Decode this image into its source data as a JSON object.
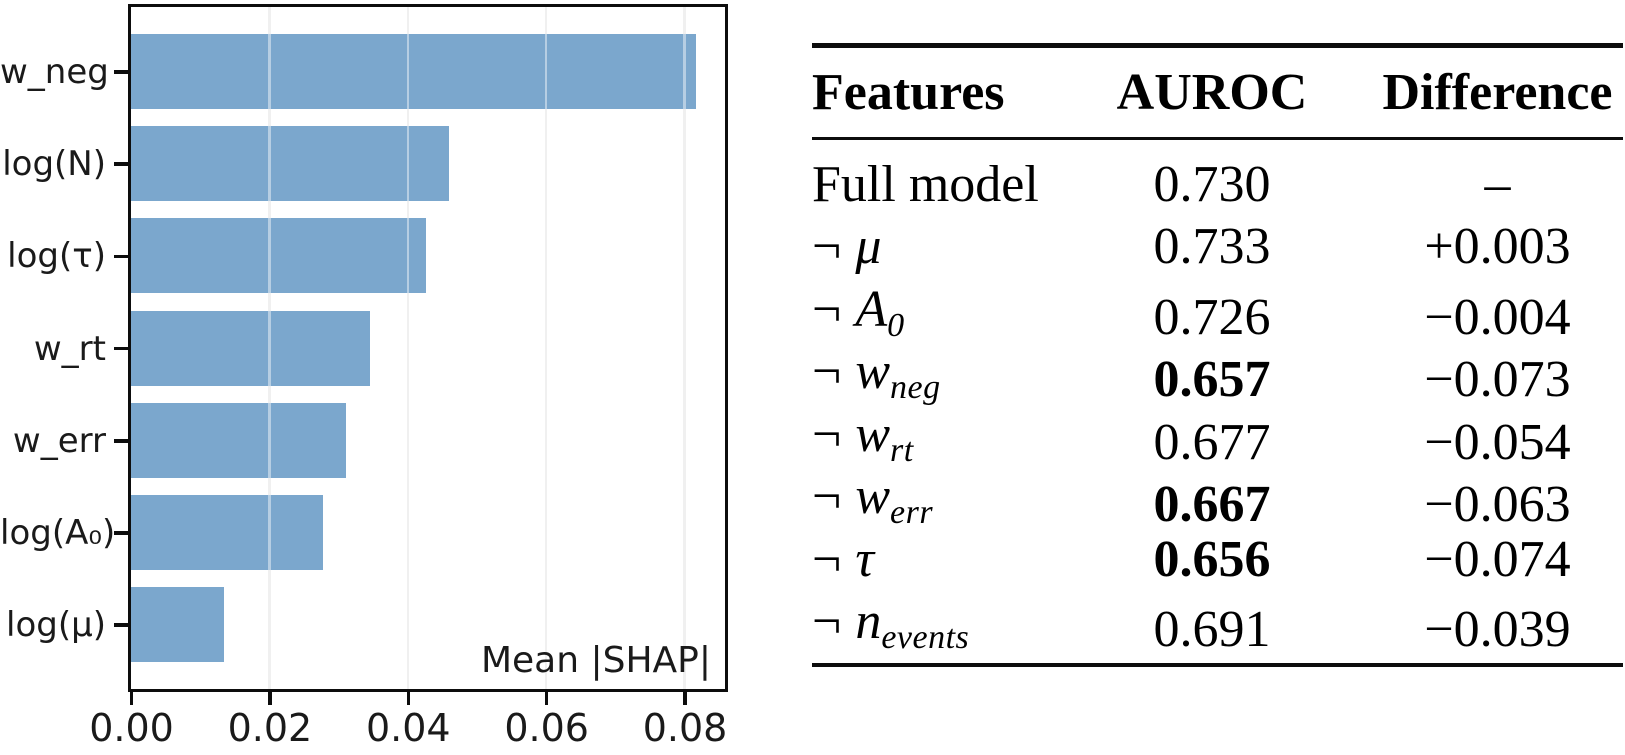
{
  "chart_data": {
    "type": "bar",
    "orientation": "horizontal",
    "title": "",
    "xlabel": "",
    "ylabel": "",
    "categories": [
      "w_neg",
      "log(N)",
      "log(τ)",
      "w_rt",
      "w_err",
      "log(A₀)",
      "log(μ)"
    ],
    "values": [
      0.0817,
      0.046,
      0.0426,
      0.0346,
      0.031,
      0.0277,
      0.0134
    ],
    "xlim": [
      0,
      0.0857
    ],
    "xticks": {
      "values": [
        0,
        0.02,
        0.04,
        0.06,
        0.08
      ],
      "labels": [
        "0.00",
        "0.02",
        "0.04",
        "0.06",
        "0.08"
      ]
    },
    "grid": "vertical, light gray",
    "legend_position": "none",
    "annotation": "Mean |SHAP|",
    "bar_color": "#7ba7cd",
    "axis_color": "#0d0d0d"
  },
  "table": {
    "columns": [
      "Features",
      "AUROC",
      "Difference"
    ],
    "rows": [
      {
        "feature": {
          "prefix": "",
          "symbol": "Full model",
          "italic": false,
          "sub": ""
        },
        "auroc": "0.730",
        "auroc_bold": false,
        "difference": "–"
      },
      {
        "feature": {
          "prefix": "¬",
          "symbol": "μ",
          "italic": true,
          "sub": ""
        },
        "auroc": "0.733",
        "auroc_bold": false,
        "difference": "+0.003"
      },
      {
        "feature": {
          "prefix": "¬",
          "symbol": "A",
          "italic": true,
          "sub": "0"
        },
        "auroc": "0.726",
        "auroc_bold": false,
        "difference": "−0.004"
      },
      {
        "feature": {
          "prefix": "¬",
          "symbol": "w",
          "italic": true,
          "sub": "neg"
        },
        "auroc": "0.657",
        "auroc_bold": true,
        "difference": "−0.073"
      },
      {
        "feature": {
          "prefix": "¬",
          "symbol": "w",
          "italic": true,
          "sub": "rt"
        },
        "auroc": "0.677",
        "auroc_bold": false,
        "difference": "−0.054"
      },
      {
        "feature": {
          "prefix": "¬",
          "symbol": "w",
          "italic": true,
          "sub": "err"
        },
        "auroc": "0.667",
        "auroc_bold": true,
        "difference": "−0.063"
      },
      {
        "feature": {
          "prefix": "¬",
          "symbol": "τ",
          "italic": true,
          "sub": ""
        },
        "auroc": "0.656",
        "auroc_bold": true,
        "difference": "−0.074"
      },
      {
        "feature": {
          "prefix": "¬",
          "symbol": "n",
          "italic": true,
          "sub": "events"
        },
        "auroc": "0.691",
        "auroc_bold": false,
        "difference": "−0.039"
      }
    ]
  }
}
